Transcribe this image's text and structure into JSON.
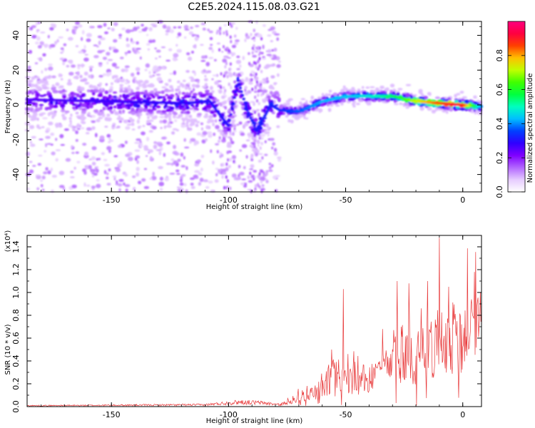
{
  "title": "C2E5.2024.115.08.03.G21",
  "colors": {
    "snr_line": "#e8393a",
    "colormap": [
      "#ffffff",
      "#e6ccff",
      "#b266ff",
      "#7f00ff",
      "#2f00ff",
      "#0040ff",
      "#00bfff",
      "#00ffbf",
      "#00ff40",
      "#40ff00",
      "#bfff00",
      "#ffbf00",
      "#ff4000",
      "#ff0040",
      "#ff007f"
    ]
  },
  "chart_data": [
    {
      "type": "heatmap",
      "title": "C2E5.2024.115.08.03.G21",
      "xlabel": "Height of straight line (km)",
      "ylabel": "Frequency (Hz)",
      "xlim": [
        -186,
        8
      ],
      "ylim": [
        -50,
        48
      ],
      "x_ticks": [
        "-150",
        "-100",
        "-50",
        "0"
      ],
      "y_ticks": [
        "-40",
        "-20",
        "0",
        "20",
        "40"
      ],
      "colorbar": {
        "label": "Normalized spectral amplitude",
        "range": [
          0,
          1
        ],
        "ticks": [
          "0.0",
          "0.2",
          "0.4",
          "0.6",
          "0.8"
        ]
      },
      "ridge": [
        {
          "x": -186,
          "f": 3
        },
        {
          "x": -150,
          "f": 2
        },
        {
          "x": -120,
          "f": 1
        },
        {
          "x": -108,
          "f": 2
        },
        {
          "x": -100,
          "f": -12
        },
        {
          "x": -96,
          "f": 14
        },
        {
          "x": -92,
          "f": -3
        },
        {
          "x": -88,
          "f": -15
        },
        {
          "x": -82,
          "f": 0
        },
        {
          "x": -78,
          "f": -3
        },
        {
          "x": -70,
          "f": -4
        },
        {
          "x": -60,
          "f": 2
        },
        {
          "x": -50,
          "f": 5
        },
        {
          "x": -40,
          "f": 5
        },
        {
          "x": -30,
          "f": 5
        },
        {
          "x": -20,
          "f": 2
        },
        {
          "x": -10,
          "f": 1
        },
        {
          "x": 0,
          "f": 0
        },
        {
          "x": 8,
          "f": -1
        }
      ],
      "ridge_amplitude": [
        {
          "x": -186,
          "a": 0.25
        },
        {
          "x": -100,
          "a": 0.3
        },
        {
          "x": -80,
          "a": 0.32
        },
        {
          "x": -60,
          "a": 0.42
        },
        {
          "x": -45,
          "a": 0.45
        },
        {
          "x": -30,
          "a": 0.55
        },
        {
          "x": -15,
          "a": 0.8
        },
        {
          "x": -5,
          "a": 0.92
        },
        {
          "x": 0,
          "a": 0.9
        },
        {
          "x": 8,
          "a": 0.4
        }
      ]
    },
    {
      "type": "line",
      "xlabel": "Height of straight line (km)",
      "ylabel": "SNR (10 * v/v)",
      "y_multiplier": "(x10⁴)",
      "xlim": [
        -186,
        8
      ],
      "ylim": [
        0,
        1.5
      ],
      "x_ticks": [
        "-150",
        "-100",
        "-50",
        "0"
      ],
      "y_ticks": [
        "0.0",
        "0.2",
        "0.4",
        "0.6",
        "0.8",
        "1.0",
        "1.2",
        "1.4"
      ],
      "envelope": [
        {
          "x": -186,
          "y": 0.01
        },
        {
          "x": -110,
          "y": 0.02
        },
        {
          "x": -95,
          "y": 0.05
        },
        {
          "x": -85,
          "y": 0.04
        },
        {
          "x": -78,
          "y": 0.02
        },
        {
          "x": -70,
          "y": 0.1
        },
        {
          "x": -60,
          "y": 0.2
        },
        {
          "x": -55,
          "y": 0.35
        },
        {
          "x": -50,
          "y": 0.3
        },
        {
          "x": -40,
          "y": 0.3
        },
        {
          "x": -30,
          "y": 0.5
        },
        {
          "x": -20,
          "y": 0.55
        },
        {
          "x": -10,
          "y": 0.7
        },
        {
          "x": -5,
          "y": 0.75
        },
        {
          "x": 0,
          "y": 0.85
        },
        {
          "x": 8,
          "y": 0.85
        }
      ],
      "peaks": [
        {
          "x": -51,
          "y": 1.03
        },
        {
          "x": -28,
          "y": 1.1
        },
        {
          "x": -23,
          "y": 1.08
        },
        {
          "x": -15,
          "y": 1.1
        },
        {
          "x": -10,
          "y": 1.48
        },
        {
          "x": -6,
          "y": 1.05
        },
        {
          "x": 5,
          "y": 1.18
        }
      ]
    }
  ]
}
